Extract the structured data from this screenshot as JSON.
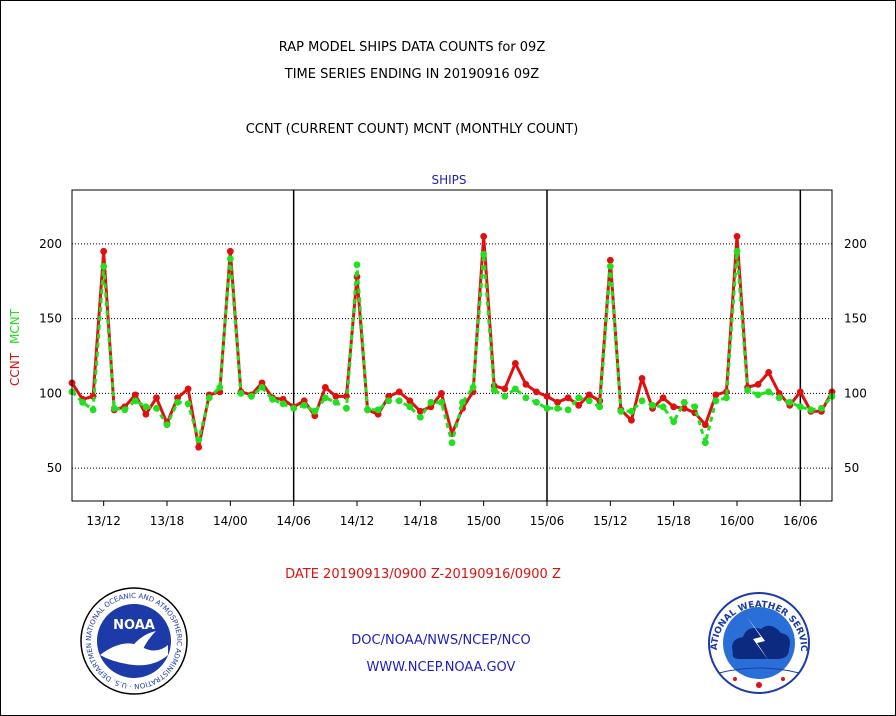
{
  "chart_data": {
    "type": "line",
    "title_lines": [
      "RAP MODEL SHIPS DATA COUNTS for 09Z",
      "TIME SERIES ENDING IN 20190916 09Z",
      "CCNT (CURRENT COUNT) MCNT (MONTHLY COUNT)"
    ],
    "panel_label": "SHIPS",
    "ylabel_ccnt": "CCNT",
    "ylabel_mcnt": "MCNT",
    "ylim": [
      28,
      236
    ],
    "yticks": [
      50,
      100,
      150,
      200
    ],
    "xlim": [
      0,
      72
    ],
    "x_tick_positions": [
      3,
      9,
      15,
      21,
      27,
      33,
      39,
      45,
      51,
      57,
      63,
      69
    ],
    "x_tick_labels": [
      "13/12",
      "13/18",
      "14/00",
      "14/06",
      "14/12",
      "14/18",
      "15/00",
      "15/06",
      "15/12",
      "15/18",
      "16/00",
      "16/06"
    ],
    "day_dividers": [
      21,
      45,
      69
    ],
    "xlabel": "DATE 20190913/0900 Z-20190916/0900 Z",
    "series": [
      {
        "name": "CCNT",
        "color": "#e01010",
        "values": [
          107,
          96,
          98,
          195,
          89,
          91,
          99,
          86,
          97,
          80,
          97,
          103,
          64,
          99,
          101,
          195,
          101,
          99,
          107,
          97,
          96,
          91,
          95,
          85,
          104,
          98,
          98,
          178,
          89,
          86,
          98,
          101,
          95,
          88,
          91,
          100,
          73,
          90,
          101,
          205,
          105,
          103,
          120,
          106,
          101,
          98,
          94,
          97,
          92,
          99,
          95,
          189,
          89,
          82,
          110,
          90,
          97,
          91,
          90,
          87,
          79,
          99,
          101,
          205,
          104,
          106,
          114,
          100,
          92,
          101,
          88,
          88,
          101
        ]
      },
      {
        "name": "MCNT",
        "color": "#20e020",
        "values": [
          101,
          94,
          89,
          185,
          90,
          89,
          95,
          91,
          90,
          79,
          94,
          93,
          69,
          97,
          104,
          190,
          100,
          98,
          104,
          96,
          93,
          90,
          92,
          88,
          97,
          94,
          90,
          186,
          89,
          89,
          95,
          95,
          91,
          84,
          94,
          94,
          67,
          94,
          104,
          193,
          102,
          98,
          103,
          97,
          94,
          90,
          90,
          89,
          97,
          95,
          91,
          185,
          88,
          88,
          95,
          92,
          91,
          81,
          94,
          91,
          67,
          95,
          97,
          195,
          102,
          99,
          101,
          97,
          94,
          91,
          89,
          90,
          98
        ]
      }
    ]
  },
  "footer": {
    "line1": "DOC/NOAA/NWS/NCEP/NCO",
    "line2": "WWW.NCEP.NOAA.GOV"
  },
  "logos": {
    "noaa_text": "NOAA",
    "noaa_ring": "NATIONAL OCEANIC AND ATMOSPHERIC ADMINISTRATION · U.S. DEPARTMENT OF COMMERCE ·",
    "nws_ring": "NATIONAL WEATHER SERVICE"
  }
}
